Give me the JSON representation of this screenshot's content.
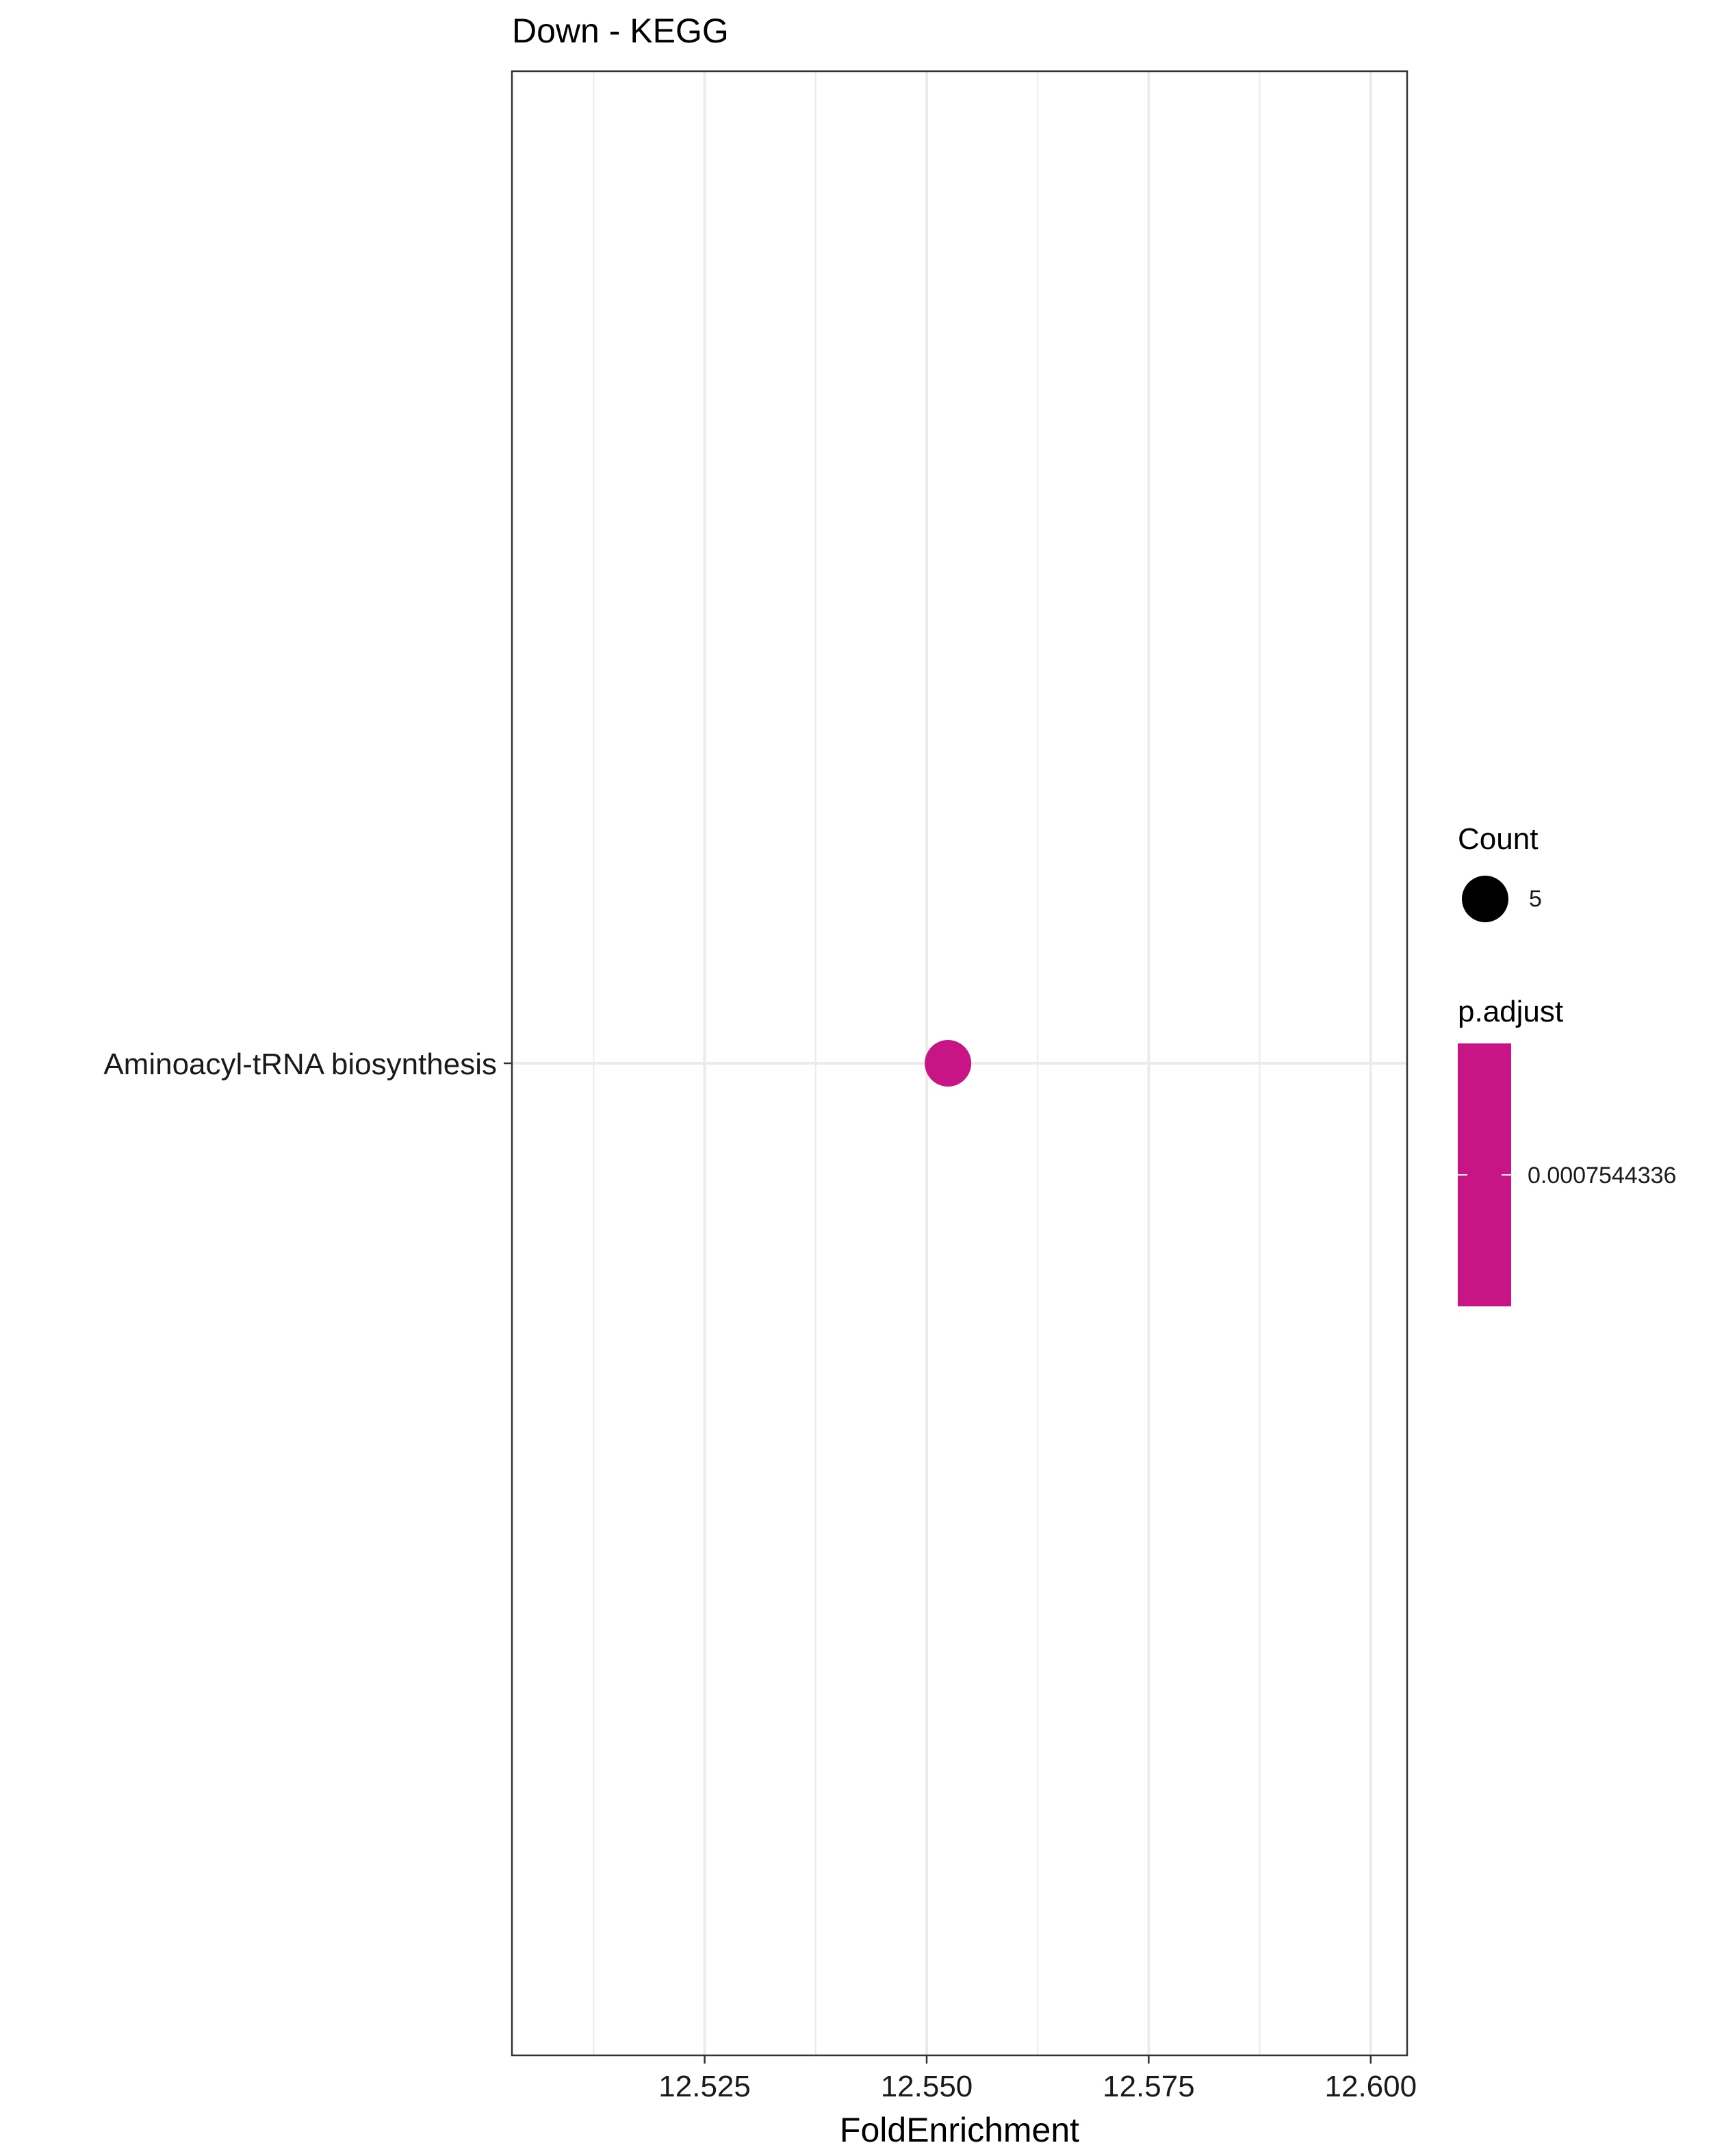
{
  "chart_data": {
    "type": "scatter",
    "title": "Down - KEGG",
    "xlabel": "FoldEnrichment",
    "ylabel": "",
    "xlim": [
      12.5033,
      12.6041
    ],
    "x_ticks": [
      12.525,
      12.55,
      12.575,
      12.6
    ],
    "x_tick_labels": [
      "12.525",
      "12.550",
      "12.575",
      "12.600"
    ],
    "x_minor_ticks": [
      12.5125,
      12.5375,
      12.5625,
      12.5875
    ],
    "categories": [
      "Aminoacyl-tRNA biosynthesis"
    ],
    "points": [
      {
        "category": "Aminoacyl-tRNA biosynthesis",
        "x": 12.5524,
        "count": 5,
        "p_adjust": 0.0007544336
      }
    ],
    "grid": true,
    "point_color": "#C71585",
    "legend": {
      "position": "right",
      "size_title": "Count",
      "size_entries": [
        {
          "label": "5",
          "value": 5
        }
      ],
      "color_title": "p.adjust",
      "color_entries": [
        {
          "label": "0.0007544336",
          "value": 0.0007544336
        }
      ],
      "colorbar_color": "#C71585"
    }
  }
}
